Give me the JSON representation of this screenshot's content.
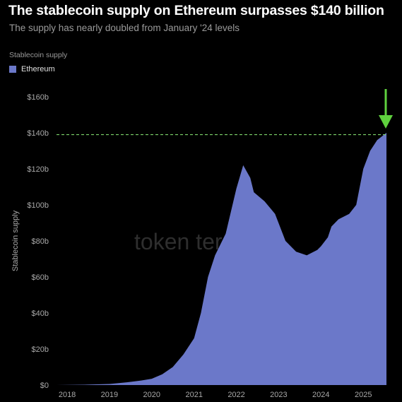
{
  "header": {
    "title": "The stablecoin supply on Ethereum surpasses $140 billion",
    "subtitle": "The supply has nearly doubled from January '24 levels"
  },
  "legend": {
    "title": "Stablecoin supply",
    "items": [
      {
        "label": "Ethereum",
        "color": "#6b78c9"
      }
    ]
  },
  "watermark": "token terminal_",
  "colors": {
    "background": "#000000",
    "area": "#6b78c9",
    "reference_line": "#7cd46a",
    "arrow": "#5fd13e"
  },
  "chart_data": {
    "type": "area",
    "title": "The stablecoin supply on Ethereum surpasses $140 billion",
    "subtitle": "The supply has nearly doubled from January '24 levels",
    "xlabel": "",
    "ylabel": "Stablecoin supply",
    "x_tick_labels": [
      "2018",
      "2019",
      "2020",
      "2021",
      "2022",
      "2023",
      "2024",
      "2025"
    ],
    "y_tick_labels": [
      "$0",
      "$20b",
      "$40b",
      "$60b",
      "$80b",
      "$100b",
      "$120b",
      "$140b",
      "$160b"
    ],
    "y_ticks": [
      0,
      20,
      40,
      60,
      80,
      100,
      120,
      140,
      160
    ],
    "ylim": [
      0,
      160
    ],
    "xlim": [
      "2017-10-01",
      "2025-07-20"
    ],
    "grid": false,
    "legend_position": "top-left",
    "reference_line": {
      "y": 139,
      "style": "dashed"
    },
    "series": [
      {
        "name": "Ethereum",
        "x": [
          "2017-10-01",
          "2018-06-01",
          "2019-01-01",
          "2019-06-01",
          "2019-10-01",
          "2020-01-01",
          "2020-04-01",
          "2020-07-01",
          "2020-10-01",
          "2021-01-01",
          "2021-03-01",
          "2021-05-01",
          "2021-07-01",
          "2021-10-01",
          "2022-01-01",
          "2022-03-01",
          "2022-05-01",
          "2022-06-01",
          "2022-09-01",
          "2022-12-01",
          "2023-03-01",
          "2023-06-01",
          "2023-09-01",
          "2023-12-01",
          "2024-01-01",
          "2024-03-01",
          "2024-04-01",
          "2024-06-01",
          "2024-09-01",
          "2024-11-01",
          "2025-01-01",
          "2025-03-01",
          "2025-05-01",
          "2025-07-20"
        ],
        "values": [
          0,
          0.2,
          0.6,
          1.5,
          2.5,
          3.5,
          6,
          10,
          17,
          26,
          40,
          60,
          72,
          84,
          109,
          122,
          115,
          107,
          102,
          95,
          80,
          74,
          72,
          75,
          77,
          82,
          88,
          92,
          95,
          100,
          120,
          130,
          136,
          140
        ]
      }
    ],
    "annotations": [
      {
        "type": "arrow",
        "points_to": "2025-07-20",
        "color": "#5fd13e"
      }
    ]
  }
}
